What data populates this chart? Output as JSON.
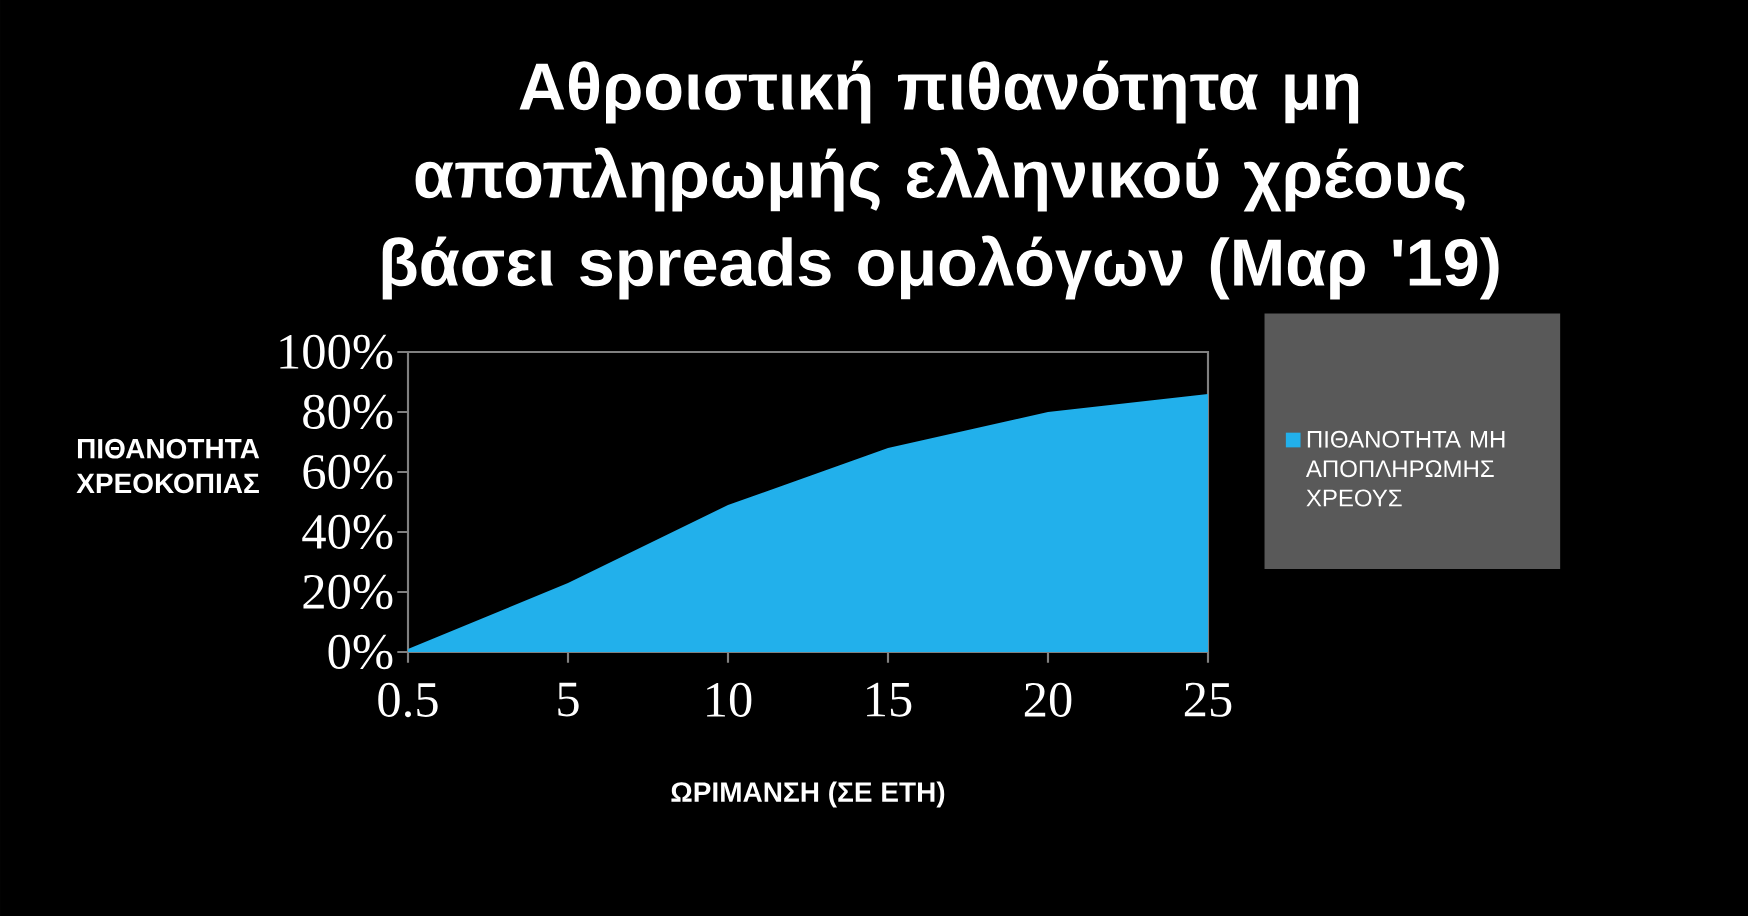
{
  "chart_data": {
    "type": "area",
    "title": "Αθροιστική πιθανότητα μη αποπληρωμής ελληνικού χρέους βάσει spreads ομολόγων (Μαρ '19)",
    "xlabel": "ΩΡΙΜΑΝΣΗ (ΣΕ ΕΤΗ)",
    "ylabel": "ΠΙΘΑΝΟΤΗΤΑ ΧΡΕΟΚΟΠΙΑΣ",
    "categories": [
      "0.5",
      "5",
      "10",
      "15",
      "20",
      "25"
    ],
    "series": [
      {
        "name": "ΠΙΘΑΝΟΤΗΤΑ ΜΗ ΑΠΟΠΛΗΡΩΜΗΣ ΧΡΕΟΥΣ",
        "color": "#22b0eb",
        "values": [
          1,
          23,
          49,
          68,
          80,
          86
        ]
      }
    ],
    "ylim": [
      0,
      100
    ],
    "yticks": [
      {
        "value": 0,
        "label": "0%"
      },
      {
        "value": 20,
        "label": "20%"
      },
      {
        "value": 40,
        "label": "40%"
      },
      {
        "value": 60,
        "label": "60%"
      },
      {
        "value": 80,
        "label": "80%"
      },
      {
        "value": 100,
        "label": "100%"
      }
    ],
    "grid": false,
    "legend": "right"
  }
}
